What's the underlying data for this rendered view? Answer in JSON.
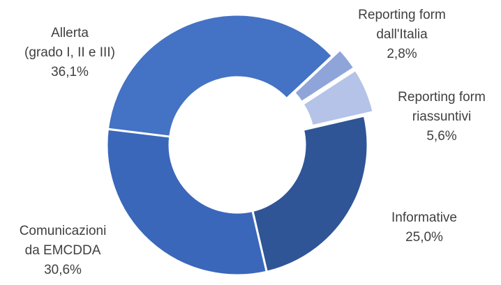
{
  "chart_data": {
    "type": "donut",
    "categories": [
      [
        "Allerta",
        "(grado I, II e III)"
      ],
      [
        "Reporting form",
        "dall'Italia"
      ],
      [
        "Reporting form",
        "riassuntivi"
      ],
      [
        "Informative"
      ],
      [
        "Comunicazioni",
        "da EMCDDA"
      ]
    ],
    "values": [
      36.1,
      2.8,
      5.6,
      25.0,
      30.6
    ],
    "value_labels": [
      "36,1%",
      "2,8%",
      "5,6%",
      "25,0%",
      "30,6%"
    ],
    "colors": [
      "#4472c4",
      "#8fa5d9",
      "#b4c3e7",
      "#2f5597",
      "#3a67ba"
    ]
  }
}
